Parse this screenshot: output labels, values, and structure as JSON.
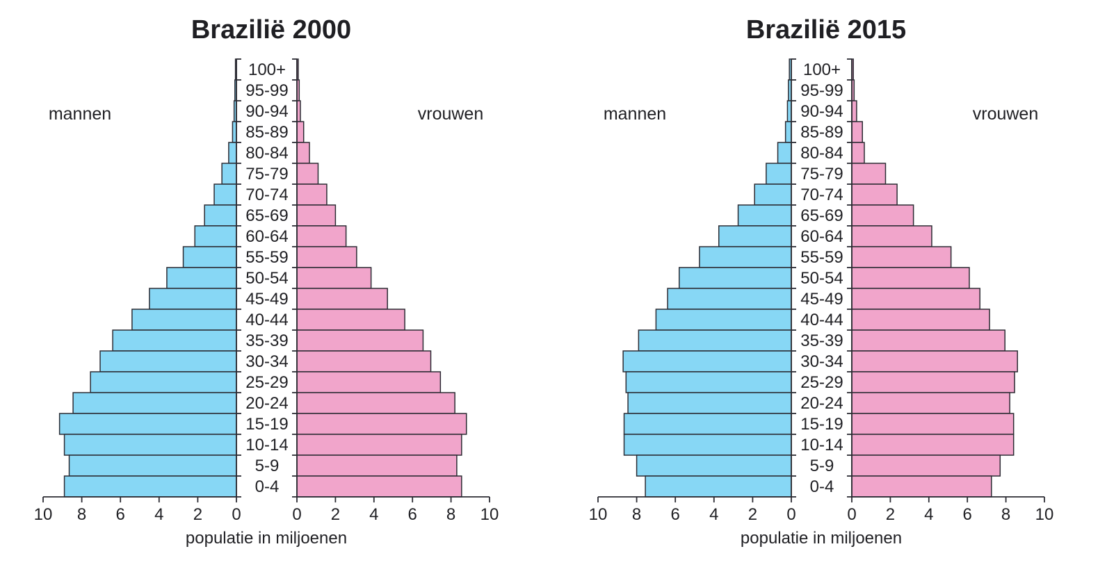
{
  "chart_data": [
    {
      "type": "bar",
      "orientation": "population-pyramid",
      "title": "Brazilië 2000",
      "left_label": "mannen",
      "right_label": "vrouwen",
      "xlabel": "populatie in miljoenen",
      "xlim": [
        0,
        10
      ],
      "x_ticks": [
        "10",
        "8",
        "6",
        "4",
        "2",
        "0",
        "0",
        "2",
        "4",
        "6",
        "8",
        "10"
      ],
      "categories": [
        "100+",
        "95-99",
        "90-94",
        "85-89",
        "80-84",
        "75-79",
        "70-74",
        "65-69",
        "60-64",
        "55-59",
        "50-54",
        "45-49",
        "40-44",
        "35-39",
        "30-34",
        "25-29",
        "20-24",
        "15-19",
        "10-14",
        "5-9",
        "0-4"
      ],
      "series": [
        {
          "name": "mannen",
          "color": "#87d7f5",
          "values": [
            0.05,
            0.08,
            0.12,
            0.2,
            0.4,
            0.75,
            1.15,
            1.65,
            2.15,
            2.75,
            3.6,
            4.5,
            5.4,
            6.4,
            7.05,
            7.55,
            8.45,
            9.15,
            8.9,
            8.65,
            8.9
          ]
        },
        {
          "name": "vrouwen",
          "color": "#f1a5cb",
          "values": [
            0.07,
            0.12,
            0.18,
            0.35,
            0.65,
            1.1,
            1.55,
            2.0,
            2.55,
            3.1,
            3.85,
            4.7,
            5.6,
            6.55,
            6.95,
            7.45,
            8.2,
            8.8,
            8.55,
            8.3,
            8.55
          ]
        }
      ]
    },
    {
      "type": "bar",
      "orientation": "population-pyramid",
      "title": "Brazilië 2015",
      "left_label": "mannen",
      "right_label": "vrouwen",
      "xlabel": "populatie in miljoenen",
      "xlim": [
        0,
        10
      ],
      "x_ticks": [
        "10",
        "8",
        "6",
        "4",
        "2",
        "0",
        "0",
        "2",
        "4",
        "6",
        "8",
        "10"
      ],
      "categories": [
        "100+",
        "95-99",
        "90-94",
        "85-89",
        "80-84",
        "75-79",
        "70-74",
        "65-69",
        "60-64",
        "55-59",
        "50-54",
        "45-49",
        "40-44",
        "35-39",
        "30-34",
        "25-29",
        "20-24",
        "15-19",
        "10-14",
        "5-9",
        "0-4"
      ],
      "series": [
        {
          "name": "mannen",
          "color": "#87d7f5",
          "values": [
            0.1,
            0.15,
            0.2,
            0.3,
            0.7,
            1.3,
            1.9,
            2.75,
            3.75,
            4.75,
            5.8,
            6.4,
            7.0,
            7.9,
            8.7,
            8.55,
            8.45,
            8.65,
            8.65,
            8.0,
            7.55
          ]
        },
        {
          "name": "vrouwen",
          "color": "#f1a5cb",
          "values": [
            0.08,
            0.12,
            0.25,
            0.55,
            0.65,
            1.75,
            2.35,
            3.2,
            4.15,
            5.15,
            6.1,
            6.65,
            7.15,
            7.95,
            8.6,
            8.45,
            8.2,
            8.4,
            8.4,
            7.7,
            7.25
          ]
        }
      ]
    }
  ]
}
